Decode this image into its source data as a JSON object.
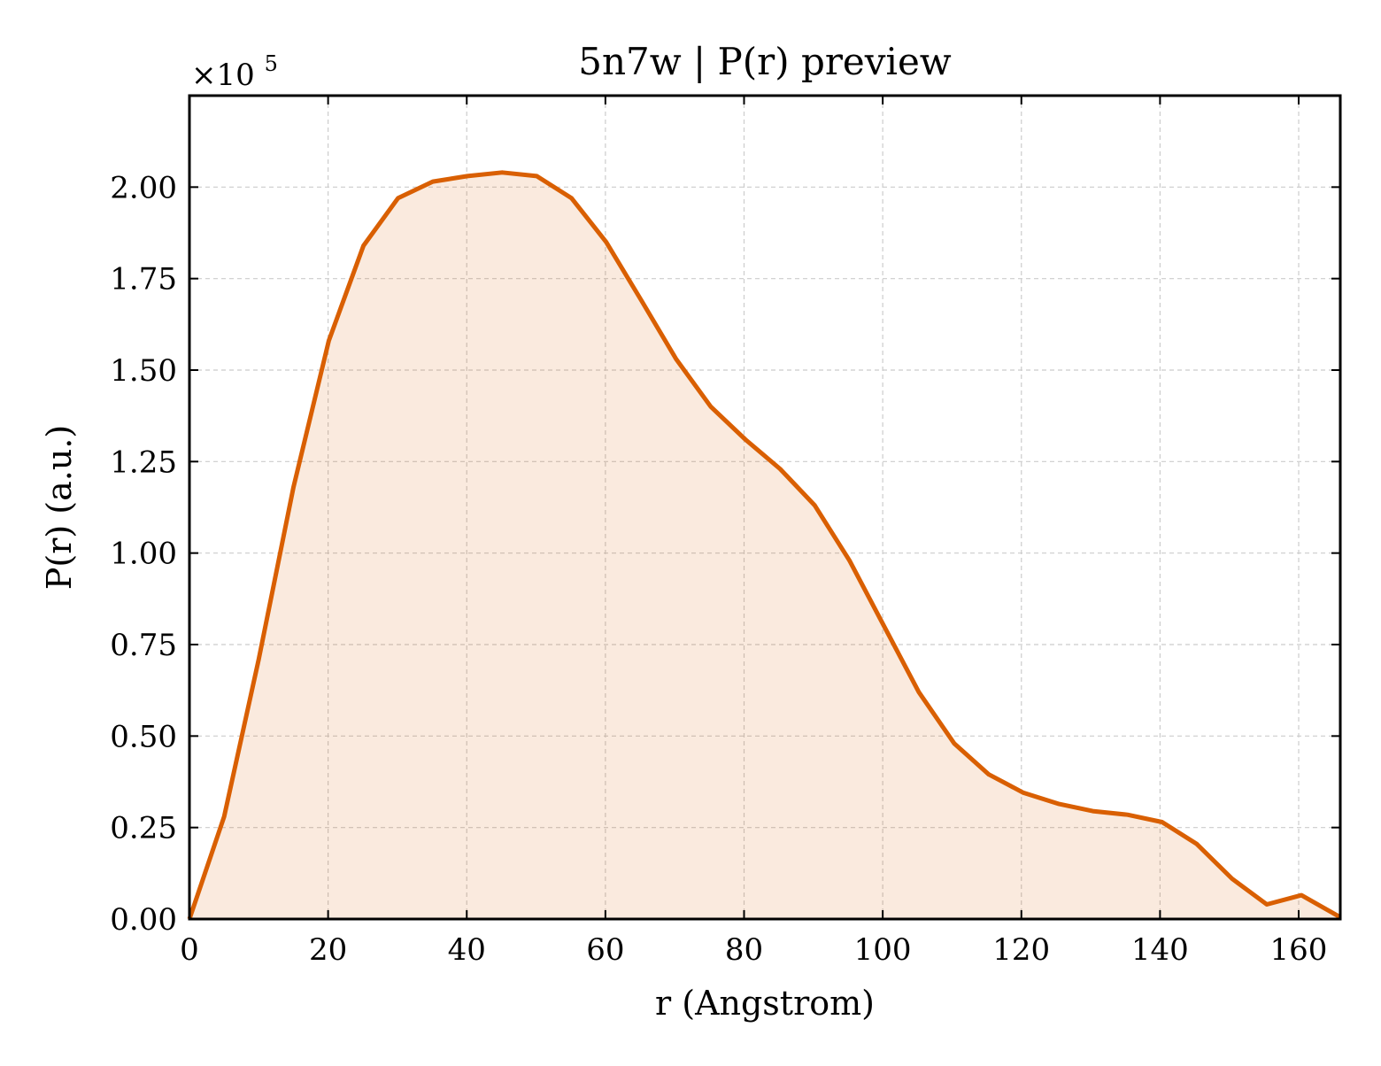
{
  "chart_data": {
    "type": "area",
    "title": "5n7w | P(r) preview",
    "xlabel": "r (Angstrom)",
    "ylabel": "P(r) (a.u.)",
    "y_multiplier": {
      "prefix": "×10",
      "exponent": "5"
    },
    "xlim": [
      0,
      166
    ],
    "ylim": [
      0,
      2.25
    ],
    "x_ticks": [
      0,
      20,
      40,
      60,
      80,
      100,
      120,
      140,
      160
    ],
    "x_tick_labels": [
      "0",
      "20",
      "40",
      "60",
      "80",
      "100",
      "120",
      "140",
      "160"
    ],
    "y_ticks": [
      0,
      0.25,
      0.5,
      0.75,
      1.0,
      1.25,
      1.5,
      1.75,
      2.0
    ],
    "y_tick_labels": [
      "0.00",
      "0.25",
      "0.50",
      "0.75",
      "1.00",
      "1.25",
      "1.50",
      "1.75",
      "2.00"
    ],
    "grid": true,
    "line_color": "#D95F02",
    "fill_color": "#D95F02",
    "series": [
      {
        "x": [
          0,
          5.0,
          10.0,
          15.0,
          20.1,
          25.1,
          30.1,
          35.1,
          40.1,
          45.1,
          50.1,
          55.1,
          60.1,
          65.2,
          70.2,
          75.2,
          80.2,
          85.2,
          90.2,
          95.2,
          100.2,
          105.2,
          110.3,
          115.3,
          120.3,
          125.3,
          130.3,
          135.3,
          140.3,
          145.3,
          150.4,
          155.4,
          160.4,
          166.0
        ],
        "y": [
          0.0,
          0.28,
          0.71,
          1.18,
          1.58,
          1.84,
          1.97,
          2.015,
          2.03,
          2.04,
          2.03,
          1.97,
          1.85,
          1.69,
          1.53,
          1.4,
          1.31,
          1.23,
          1.13,
          0.98,
          0.8,
          0.62,
          0.48,
          0.395,
          0.345,
          0.315,
          0.295,
          0.285,
          0.265,
          0.205,
          0.11,
          0.04,
          0.065,
          0.005
        ]
      }
    ]
  }
}
